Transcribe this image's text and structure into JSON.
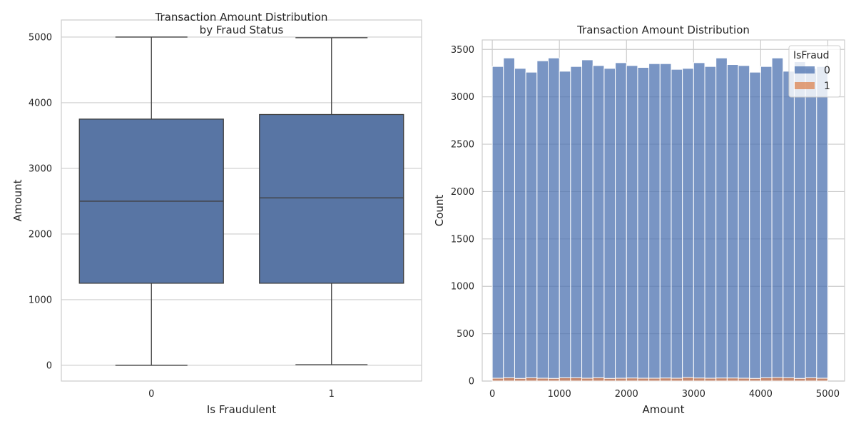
{
  "chart_data": [
    {
      "type": "box",
      "title_lines": [
        "Transaction Amount Distribution",
        "by Fraud Status"
      ],
      "xlabel": "Is Fraudulent",
      "ylabel": "Amount",
      "ylim": [
        -240,
        5260
      ],
      "yticks": [
        0,
        1000,
        2000,
        3000,
        4000,
        5000
      ],
      "grid": true,
      "color": "#5875a4",
      "categories": [
        "0",
        "1"
      ],
      "boxes": [
        {
          "category": "0",
          "whisker_low": 0,
          "q1": 1250,
          "median": 2500,
          "q3": 3750,
          "whisker_high": 5000
        },
        {
          "category": "1",
          "whisker_low": 10,
          "q1": 1250,
          "median": 2550,
          "q3": 3820,
          "whisker_high": 4990
        }
      ]
    },
    {
      "type": "histogram",
      "title": "Transaction Amount Distribution",
      "xlabel": "Amount",
      "ylabel": "Count",
      "xlim": [
        -150,
        5250
      ],
      "ylim": [
        0,
        3600
      ],
      "xticks": [
        0,
        1000,
        2000,
        3000,
        4000,
        5000
      ],
      "yticks": [
        0,
        500,
        1000,
        1500,
        2000,
        2500,
        3000,
        3500
      ],
      "grid": true,
      "bin_edges": [
        0,
        166.7,
        333.3,
        500,
        666.7,
        833.3,
        1000,
        1166.7,
        1333.3,
        1500,
        1666.7,
        1833.3,
        2000,
        2166.7,
        2333.3,
        2500,
        2666.7,
        2833.3,
        3000,
        3166.7,
        3333.3,
        3500,
        3666.7,
        3833.3,
        4000,
        4166.7,
        4333.3,
        4500,
        4666.7,
        4833.3,
        5000
      ],
      "legend": {
        "title": "IsFraud",
        "placement": "top-right",
        "entries": [
          "0",
          "1"
        ]
      },
      "series": [
        {
          "name": "0",
          "color": "#4c72b0",
          "values": [
            3320,
            3410,
            3300,
            3260,
            3380,
            3410,
            3270,
            3320,
            3390,
            3330,
            3300,
            3360,
            3330,
            3310,
            3350,
            3350,
            3290,
            3300,
            3360,
            3320,
            3410,
            3340,
            3330,
            3260,
            3320,
            3410,
            3270,
            3370,
            3300,
            3320
          ]
        },
        {
          "name": "1",
          "color": "#dd8452",
          "values": [
            30,
            35,
            28,
            35,
            30,
            28,
            35,
            35,
            30,
            35,
            28,
            30,
            32,
            30,
            30,
            32,
            30,
            38,
            32,
            30,
            32,
            32,
            30,
            28,
            35,
            38,
            35,
            28,
            35,
            30
          ]
        }
      ]
    }
  ]
}
